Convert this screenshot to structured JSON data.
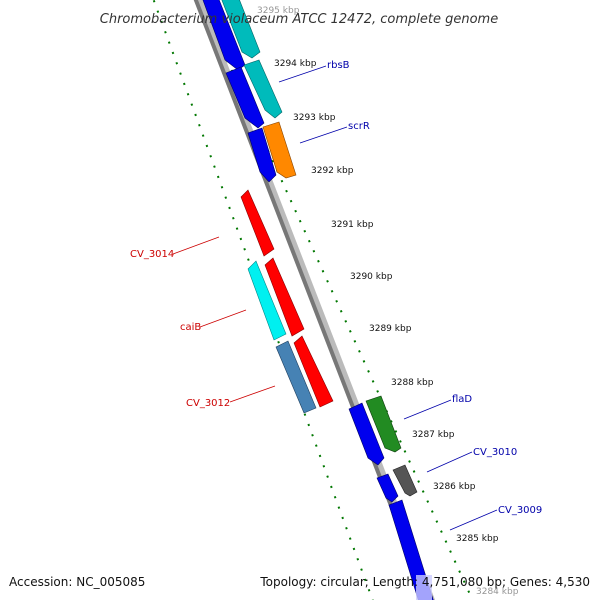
{
  "title": "Chromobacterium violaceum ATCC 12472, complete genome",
  "footer": {
    "accession": "Accession: NC_005085",
    "summary": "Topology: circular; Length: 4,751,080 bp; Genes: 4,530"
  },
  "ticks": {
    "unit": "kbp",
    "labels": [
      "3295 kbp",
      "3294 kbp",
      "3293 kbp",
      "3292 kbp",
      "3291 kbp",
      "3290 kbp",
      "3289 kbp",
      "3288 kbp",
      "3287 kbp",
      "3286 kbp",
      "3285 kbp",
      "3284 kbp"
    ]
  },
  "colors": {
    "forward_label": "#0000aa",
    "reverse_label": "#cc0000",
    "backbone": "#777777",
    "tick_dots": "#007700",
    "cds_blue": "#0000ee",
    "cyan": "#00bbbb",
    "bright_cyan": "#00f0f0",
    "orange": "#ff8800",
    "red": "#ff0000",
    "steel_blue": "#4682b4",
    "green": "#228b22",
    "gray": "#555555"
  },
  "genes": [
    {
      "label": "rbsB",
      "strand": "forward"
    },
    {
      "label": "scrR",
      "strand": "forward"
    },
    {
      "label": "CV_3014",
      "strand": "reverse"
    },
    {
      "label": "caiB",
      "strand": "reverse"
    },
    {
      "label": "CV_3012",
      "strand": "reverse"
    },
    {
      "label": "flaD",
      "strand": "forward"
    },
    {
      "label": "CV_3010",
      "strand": "forward"
    },
    {
      "label": "CV_3009",
      "strand": "forward"
    }
  ]
}
